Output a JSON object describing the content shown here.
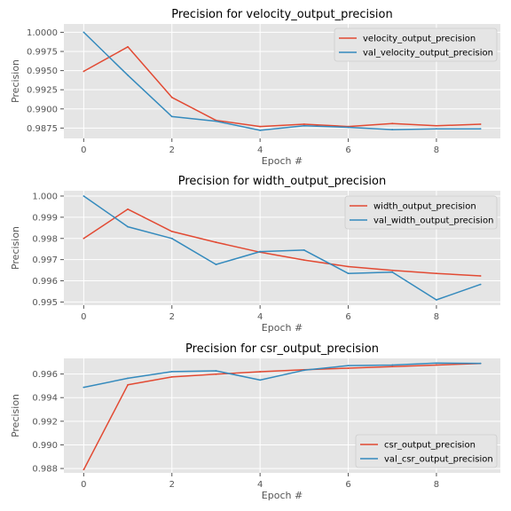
{
  "chart_data": [
    {
      "type": "line",
      "title": "Precision for velocity_output_precision",
      "xlabel": "Epoch #",
      "ylabel": "Precision",
      "x": [
        0,
        1,
        2,
        3,
        4,
        5,
        6,
        7,
        8,
        9
      ],
      "xlim": [
        -0.45,
        9.45
      ],
      "ylim": [
        0.98615,
        1.00109
      ],
      "xticks": [
        0,
        2,
        4,
        6,
        8
      ],
      "yticks": [
        0.9875,
        0.99,
        0.9925,
        0.995,
        0.9975,
        1.0
      ],
      "ytick_labels": [
        "0.9875",
        "0.9900",
        "0.9925",
        "0.9950",
        "0.9975",
        "1.0000"
      ],
      "grid": true,
      "legend_position": "top-right",
      "series": [
        {
          "name": "velocity_output_precision",
          "color": "#E24A33",
          "values": [
            0.9949,
            0.9981,
            0.9915,
            0.9885,
            0.9877,
            0.988,
            0.9877,
            0.9881,
            0.9878,
            0.988
          ]
        },
        {
          "name": "val_velocity_output_precision",
          "color": "#348ABD",
          "values": [
            1.0,
            0.9944,
            0.989,
            0.9884,
            0.9872,
            0.9878,
            0.9876,
            0.9873,
            0.9874,
            0.9874
          ]
        }
      ]
    },
    {
      "type": "line",
      "title": "Precision for width_output_precision",
      "xlabel": "Epoch #",
      "ylabel": "Precision",
      "x": [
        0,
        1,
        2,
        3,
        4,
        5,
        6,
        7,
        8,
        9
      ],
      "xlim": [
        -0.45,
        9.45
      ],
      "ylim": [
        0.99485,
        1.00025
      ],
      "xticks": [
        0,
        2,
        4,
        6,
        8
      ],
      "yticks": [
        0.995,
        0.996,
        0.997,
        0.998,
        0.999,
        1.0
      ],
      "ytick_labels": [
        "0.995",
        "0.996",
        "0.997",
        "0.998",
        "0.999",
        "1.000"
      ],
      "grid": true,
      "legend_position": "top-right",
      "series": [
        {
          "name": "width_output_precision",
          "color": "#E24A33",
          "values": [
            0.998,
            0.99938,
            0.99833,
            0.99782,
            0.99735,
            0.99698,
            0.99667,
            0.99649,
            0.99635,
            0.99623
          ]
        },
        {
          "name": "val_width_output_precision",
          "color": "#348ABD",
          "values": [
            1.0,
            0.99855,
            0.998,
            0.99677,
            0.99738,
            0.99745,
            0.99635,
            0.99641,
            0.9951,
            0.99583
          ]
        }
      ]
    },
    {
      "type": "line",
      "title": "Precision for csr_output_precision",
      "xlabel": "Epoch #",
      "ylabel": "Precision",
      "x": [
        0,
        1,
        2,
        3,
        4,
        5,
        6,
        7,
        8,
        9
      ],
      "xlim": [
        -0.45,
        9.45
      ],
      "ylim": [
        0.98763,
        0.99732
      ],
      "xticks": [
        0,
        2,
        4,
        6,
        8
      ],
      "yticks": [
        0.988,
        0.99,
        0.992,
        0.994,
        0.996
      ],
      "ytick_labels": [
        "0.988",
        "0.990",
        "0.992",
        "0.994",
        "0.996"
      ],
      "grid": true,
      "legend_position": "bottom-right",
      "series": [
        {
          "name": "csr_output_precision",
          "color": "#E24A33",
          "values": [
            0.9879,
            0.99508,
            0.99575,
            0.99598,
            0.99619,
            0.99636,
            0.99649,
            0.99663,
            0.99676,
            0.99689
          ]
        },
        {
          "name": "val_csr_output_precision",
          "color": "#348ABD",
          "values": [
            0.99487,
            0.99564,
            0.9962,
            0.99627,
            0.99549,
            0.99632,
            0.99671,
            0.99676,
            0.99692,
            0.9969
          ]
        }
      ]
    }
  ]
}
